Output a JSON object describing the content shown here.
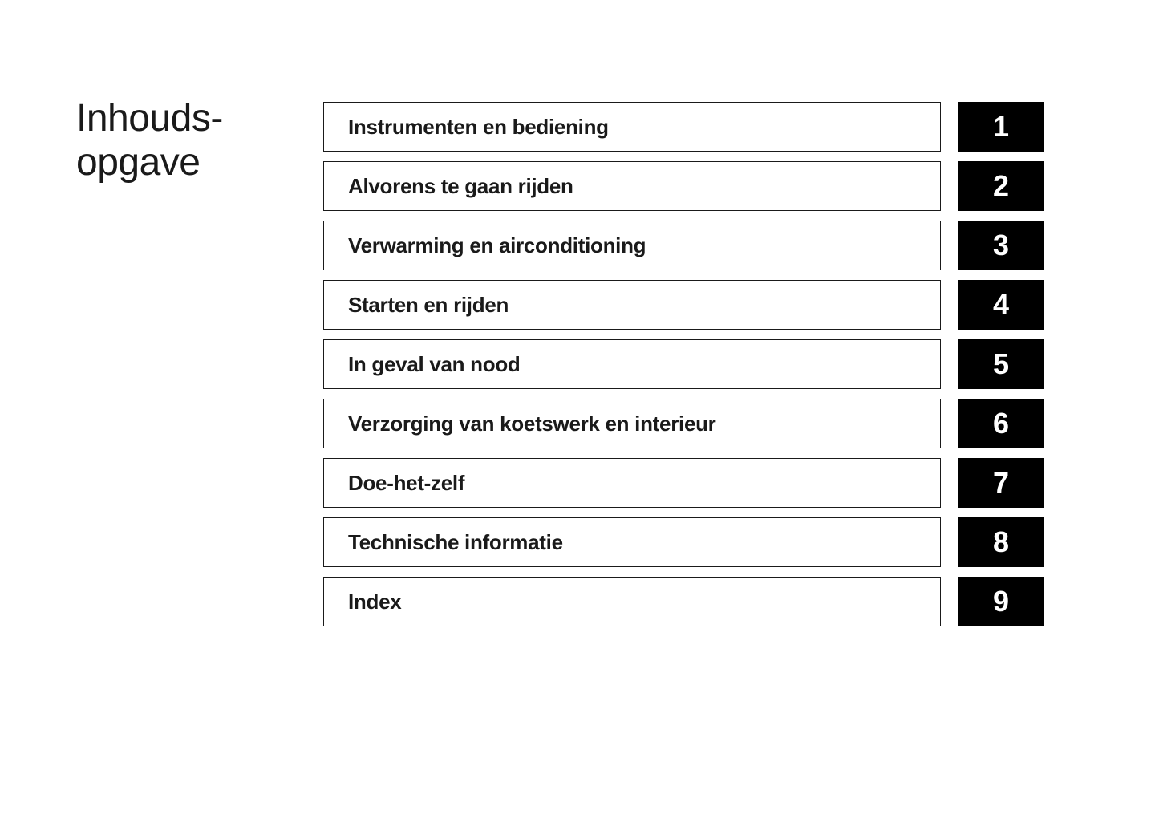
{
  "title_line1": "Inhouds-",
  "title_line2": "opgave",
  "toc": {
    "items": [
      {
        "label": "Instrumenten en bediening",
        "number": "1"
      },
      {
        "label": "Alvorens te gaan rijden",
        "number": "2"
      },
      {
        "label": "Verwarming en airconditioning",
        "number": "3"
      },
      {
        "label": "Starten en rijden",
        "number": "4"
      },
      {
        "label": "In geval van nood",
        "number": "5"
      },
      {
        "label": "Verzorging van koetswerk en interieur",
        "number": "6"
      },
      {
        "label": "Doe-het-zelf",
        "number": "7"
      },
      {
        "label": "Technische informatie",
        "number": "8"
      },
      {
        "label": "Index",
        "number": "9"
      }
    ]
  },
  "styling": {
    "background_color": "#ffffff",
    "text_color": "#1a1a1a",
    "tab_background": "#000000",
    "tab_text_color": "#ffffff",
    "border_color": "#1a1a1a",
    "title_fontsize": 48,
    "item_fontsize": 26,
    "number_fontsize": 36,
    "item_box_width": 770,
    "item_box_height": 62,
    "tab_width": 108,
    "tab_height": 62,
    "row_gap": 12
  }
}
